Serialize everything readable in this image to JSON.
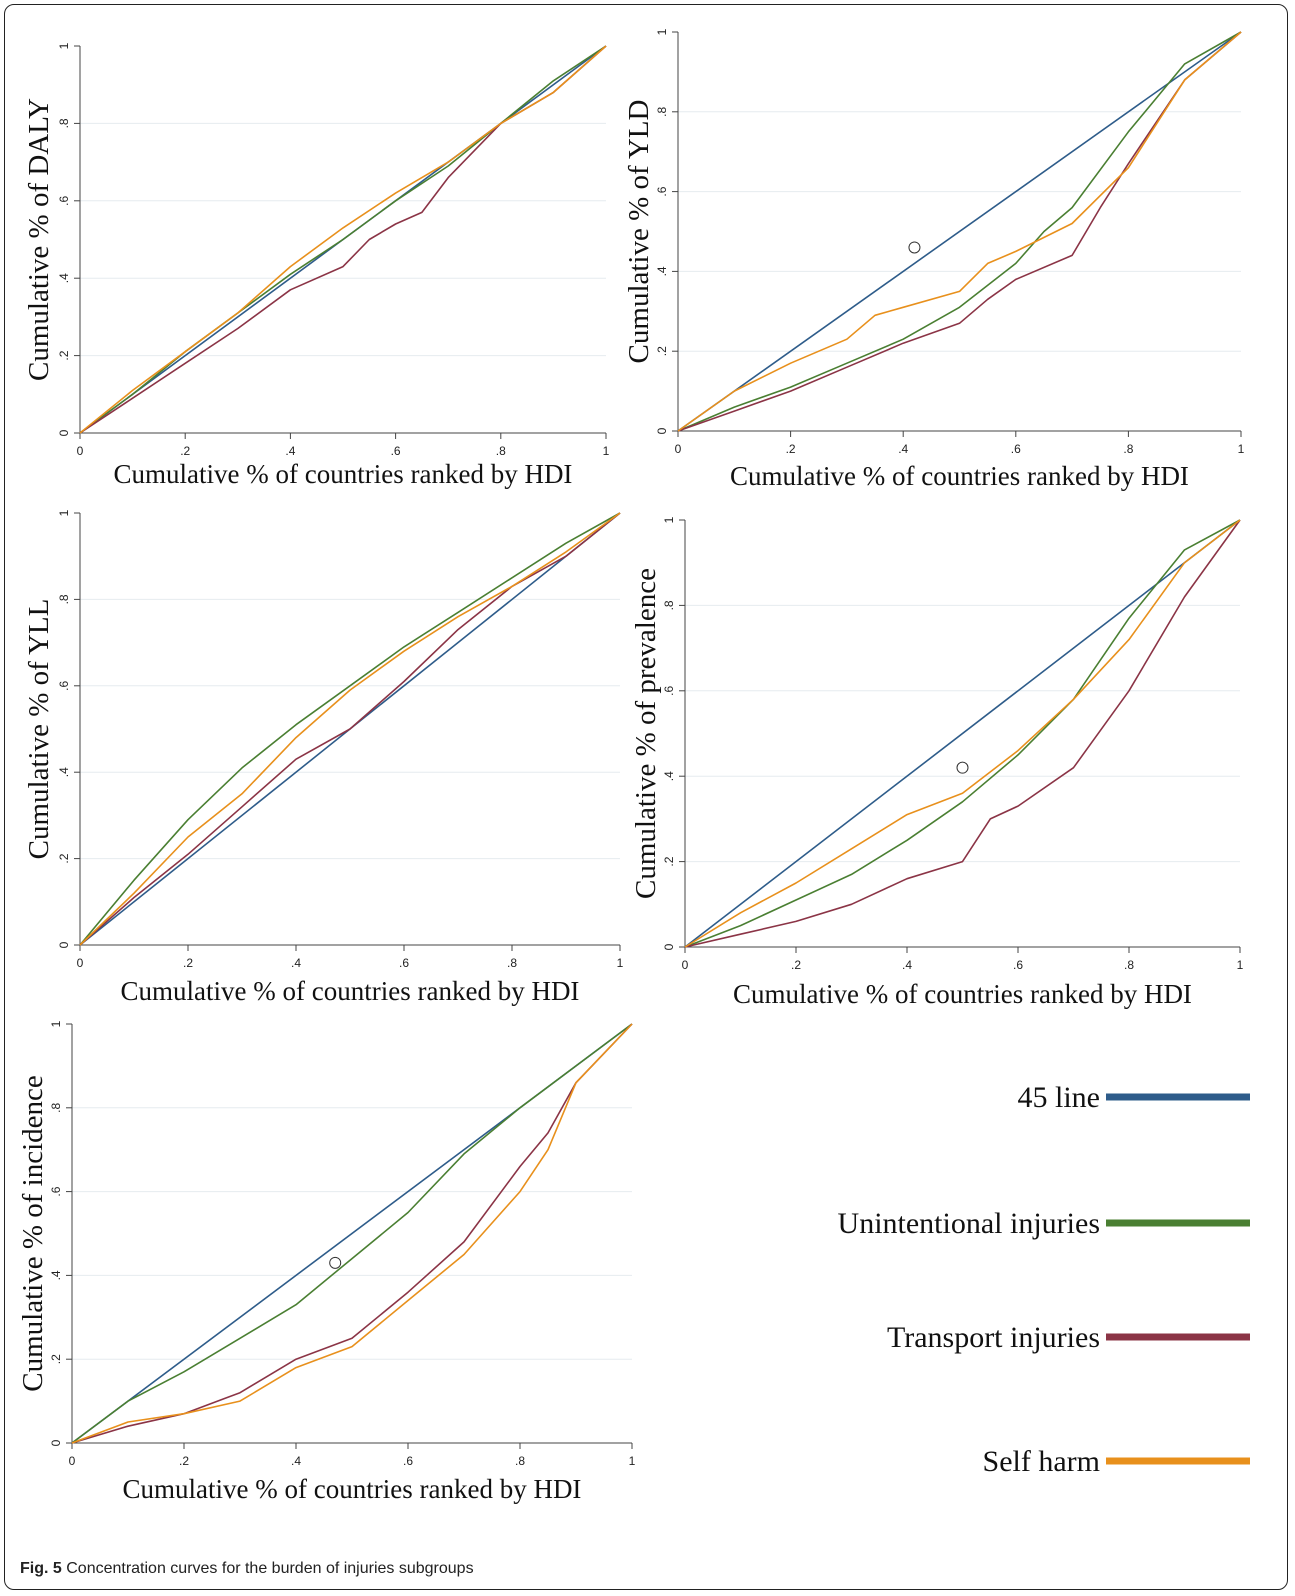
{
  "caption": {
    "figure_label": "Fig. 5",
    "text": "Concentration curves for the burden of injuries subgroups"
  },
  "colors": {
    "line45": "#2e5c8a",
    "unintentional": "#4a7f32",
    "transport": "#8b3446",
    "selfharm": "#e8901c"
  },
  "legend": {
    "items": [
      {
        "label": "45 line",
        "color": "#2e5c8a"
      },
      {
        "label": "Unintentional injuries",
        "color": "#4a7f32"
      },
      {
        "label": "Transport injuries",
        "color": "#8b3446"
      },
      {
        "label": "Self harm",
        "color": "#e8901c"
      }
    ]
  },
  "chart_data": [
    {
      "type": "line",
      "xlabel": "Cumulative % of countries ranked by HDI",
      "ylabel": "Cumulative % of DALY",
      "xlim": [
        0,
        1
      ],
      "ylim": [
        0,
        1
      ],
      "xticks": [
        "0",
        ".2",
        ".4",
        ".6",
        ".8",
        "1"
      ],
      "yticks": [
        "0",
        ".2",
        ".4",
        ".6",
        ".8",
        "1"
      ],
      "series": [
        {
          "name": "45 line",
          "x": [
            0,
            1
          ],
          "y": [
            0,
            1
          ]
        },
        {
          "name": "Unintentional injuries",
          "x": [
            0,
            0.1,
            0.2,
            0.3,
            0.4,
            0.5,
            0.6,
            0.7,
            0.8,
            0.9,
            1
          ],
          "y": [
            0,
            0.1,
            0.21,
            0.31,
            0.41,
            0.5,
            0.6,
            0.69,
            0.8,
            0.91,
            1
          ]
        },
        {
          "name": "Transport injuries",
          "x": [
            0,
            0.1,
            0.2,
            0.3,
            0.4,
            0.5,
            0.55,
            0.6,
            0.65,
            0.7,
            0.8,
            0.9,
            1
          ],
          "y": [
            0,
            0.09,
            0.18,
            0.27,
            0.37,
            0.43,
            0.5,
            0.54,
            0.57,
            0.66,
            0.8,
            0.88,
            1
          ]
        },
        {
          "name": "Self harm",
          "x": [
            0,
            0.1,
            0.2,
            0.3,
            0.4,
            0.5,
            0.6,
            0.7,
            0.8,
            0.9,
            1
          ],
          "y": [
            0,
            0.11,
            0.21,
            0.31,
            0.43,
            0.53,
            0.62,
            0.7,
            0.8,
            0.88,
            1
          ]
        }
      ]
    },
    {
      "type": "line",
      "xlabel": "Cumulative % of countries ranked by HDI",
      "ylabel": "Cumulative % of YLD",
      "xlim": [
        0,
        1
      ],
      "ylim": [
        0,
        1
      ],
      "xticks": [
        "0",
        ".2",
        ".4",
        ".6",
        ".8",
        "1"
      ],
      "yticks": [
        "0",
        ".2",
        ".4",
        ".6",
        ".8",
        "1"
      ],
      "series": [
        {
          "name": "45 line",
          "x": [
            0,
            1
          ],
          "y": [
            0,
            1
          ]
        },
        {
          "name": "Unintentional injuries",
          "x": [
            0,
            0.1,
            0.2,
            0.3,
            0.4,
            0.5,
            0.6,
            0.65,
            0.7,
            0.8,
            0.9,
            1
          ],
          "y": [
            0,
            0.06,
            0.11,
            0.17,
            0.23,
            0.31,
            0.42,
            0.5,
            0.56,
            0.75,
            0.92,
            1
          ]
        },
        {
          "name": "Transport injuries",
          "x": [
            0,
            0.1,
            0.2,
            0.3,
            0.4,
            0.5,
            0.55,
            0.6,
            0.7,
            0.75,
            0.8,
            0.9,
            1
          ],
          "y": [
            0,
            0.05,
            0.1,
            0.16,
            0.22,
            0.27,
            0.33,
            0.38,
            0.44,
            0.56,
            0.67,
            0.88,
            1
          ]
        },
        {
          "name": "Self harm",
          "x": [
            0,
            0.1,
            0.2,
            0.3,
            0.35,
            0.4,
            0.5,
            0.55,
            0.6,
            0.7,
            0.8,
            0.9,
            1
          ],
          "y": [
            0,
            0.1,
            0.17,
            0.23,
            0.29,
            0.31,
            0.35,
            0.42,
            0.45,
            0.52,
            0.66,
            0.88,
            1
          ]
        }
      ]
    },
    {
      "type": "line",
      "xlabel": "Cumulative % of countries ranked by HDI",
      "ylabel": "Cumulative % of YLL",
      "xlim": [
        0,
        1
      ],
      "ylim": [
        0,
        1
      ],
      "xticks": [
        "0",
        ".2",
        ".4",
        ".6",
        ".8",
        "1"
      ],
      "yticks": [
        "0",
        ".2",
        ".4",
        ".6",
        ".8",
        "1"
      ],
      "series": [
        {
          "name": "45 line",
          "x": [
            0,
            1
          ],
          "y": [
            0,
            1
          ]
        },
        {
          "name": "Unintentional injuries",
          "x": [
            0,
            0.1,
            0.2,
            0.3,
            0.4,
            0.5,
            0.6,
            0.7,
            0.8,
            0.9,
            1
          ],
          "y": [
            0,
            0.15,
            0.29,
            0.41,
            0.51,
            0.6,
            0.69,
            0.77,
            0.85,
            0.93,
            1
          ]
        },
        {
          "name": "Transport injuries",
          "x": [
            0,
            0.1,
            0.2,
            0.3,
            0.4,
            0.5,
            0.6,
            0.7,
            0.8,
            0.9,
            1
          ],
          "y": [
            0,
            0.11,
            0.21,
            0.32,
            0.43,
            0.5,
            0.61,
            0.73,
            0.83,
            0.9,
            1
          ]
        },
        {
          "name": "Self harm",
          "x": [
            0,
            0.1,
            0.2,
            0.3,
            0.4,
            0.5,
            0.6,
            0.7,
            0.8,
            0.9,
            1
          ],
          "y": [
            0,
            0.12,
            0.25,
            0.35,
            0.48,
            0.59,
            0.68,
            0.76,
            0.83,
            0.91,
            1
          ]
        }
      ]
    },
    {
      "type": "line",
      "xlabel": "Cumulative % of countries ranked by HDI",
      "ylabel": "Cumulative % of prevalence",
      "xlim": [
        0,
        1
      ],
      "ylim": [
        0,
        1
      ],
      "xticks": [
        "0",
        ".2",
        ".4",
        ".6",
        ".8",
        "1"
      ],
      "yticks": [
        "0",
        ".2",
        ".4",
        ".6",
        ".8",
        "1"
      ],
      "series": [
        {
          "name": "45 line",
          "x": [
            0,
            1
          ],
          "y": [
            0,
            1
          ]
        },
        {
          "name": "Unintentional injuries",
          "x": [
            0,
            0.1,
            0.2,
            0.3,
            0.4,
            0.5,
            0.6,
            0.7,
            0.8,
            0.9,
            1
          ],
          "y": [
            0,
            0.05,
            0.11,
            0.17,
            0.25,
            0.34,
            0.45,
            0.58,
            0.77,
            0.93,
            1
          ]
        },
        {
          "name": "Transport injuries",
          "x": [
            0,
            0.1,
            0.2,
            0.3,
            0.4,
            0.5,
            0.55,
            0.6,
            0.7,
            0.8,
            0.9,
            1
          ],
          "y": [
            0,
            0.03,
            0.06,
            0.1,
            0.16,
            0.2,
            0.3,
            0.33,
            0.42,
            0.6,
            0.82,
            1
          ]
        },
        {
          "name": "Self harm",
          "x": [
            0,
            0.1,
            0.2,
            0.3,
            0.4,
            0.5,
            0.6,
            0.7,
            0.8,
            0.9,
            1
          ],
          "y": [
            0,
            0.08,
            0.15,
            0.23,
            0.31,
            0.36,
            0.46,
            0.58,
            0.72,
            0.9,
            1
          ]
        }
      ]
    },
    {
      "type": "line",
      "xlabel": "Cumulative % of countries ranked by HDI",
      "ylabel": "Cumulative % of incidence",
      "xlim": [
        0,
        1
      ],
      "ylim": [
        0,
        1
      ],
      "xticks": [
        "0",
        ".2",
        ".4",
        ".6",
        ".8",
        "1"
      ],
      "yticks": [
        "0",
        ".2",
        ".4",
        ".6",
        ".8",
        "1"
      ],
      "series": [
        {
          "name": "45 line",
          "x": [
            0,
            1
          ],
          "y": [
            0,
            1
          ]
        },
        {
          "name": "Unintentional injuries",
          "x": [
            0,
            0.1,
            0.2,
            0.3,
            0.4,
            0.5,
            0.6,
            0.7,
            0.8,
            0.9,
            1
          ],
          "y": [
            0,
            0.1,
            0.17,
            0.25,
            0.33,
            0.44,
            0.55,
            0.69,
            0.8,
            0.9,
            1
          ]
        },
        {
          "name": "Transport injuries",
          "x": [
            0,
            0.1,
            0.2,
            0.3,
            0.4,
            0.5,
            0.6,
            0.7,
            0.8,
            0.85,
            0.9,
            1
          ],
          "y": [
            0,
            0.04,
            0.07,
            0.12,
            0.2,
            0.25,
            0.36,
            0.48,
            0.66,
            0.74,
            0.86,
            1
          ]
        },
        {
          "name": "Self harm",
          "x": [
            0,
            0.1,
            0.2,
            0.3,
            0.4,
            0.5,
            0.6,
            0.7,
            0.8,
            0.85,
            0.9,
            1
          ],
          "y": [
            0,
            0.05,
            0.07,
            0.1,
            0.18,
            0.23,
            0.34,
            0.45,
            0.6,
            0.7,
            0.86,
            1
          ]
        }
      ]
    }
  ]
}
